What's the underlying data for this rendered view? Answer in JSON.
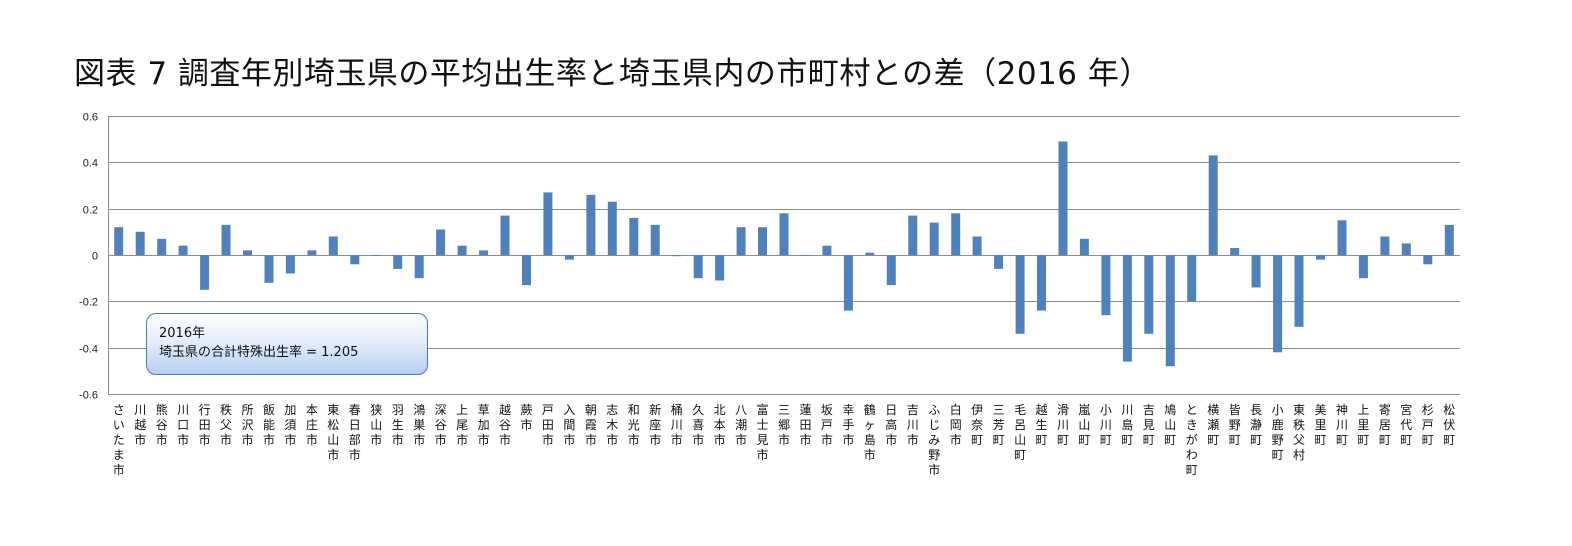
{
  "title": "図表 7 調査年別埼玉県の平均出生率と埼玉県内の市町村との差（2016 年）",
  "note": {
    "line1": "2016年",
    "line2": "埼玉県の合計特殊出生率 = 1.205"
  },
  "colors": {
    "bar": "#4f81bd",
    "grid": "#8c8c8c",
    "axis": "#8c8c8c"
  },
  "chart_data": {
    "type": "bar",
    "title": "図表 7 調査年別埼玉県の平均出生率と埼玉県内の市町村との差（2016 年）",
    "xlabel": "",
    "ylabel": "",
    "ylim": [
      -0.6,
      0.6
    ],
    "yticks": [
      "0.6",
      "0.4",
      "0.2",
      "0",
      "-0.2",
      "-0.4",
      "-0.6"
    ],
    "grid": true,
    "categories": [
      "さいたま市",
      "川越市",
      "熊谷市",
      "川口市",
      "行田市",
      "秩父市",
      "所沢市",
      "飯能市",
      "加須市",
      "本庄市",
      "東松山市",
      "春日部市",
      "狭山市",
      "羽生市",
      "鴻巣市",
      "深谷市",
      "上尾市",
      "草加市",
      "越谷市",
      "蕨市",
      "戸田市",
      "入間市",
      "朝霞市",
      "志木市",
      "和光市",
      "新座市",
      "桶川市",
      "久喜市",
      "北本市",
      "八潮市",
      "富士見市",
      "三郷市",
      "蓮田市",
      "坂戸市",
      "幸手市",
      "鶴ヶ島市",
      "日高市",
      "吉川市",
      "ふじみ野市",
      "白岡市",
      "伊奈町",
      "三芳町",
      "毛呂山町",
      "越生町",
      "滑川町",
      "嵐山町",
      "小川町",
      "川島町",
      "吉見町",
      "鳩山町",
      "ときがわ町",
      "横瀬町",
      "皆野町",
      "長瀞町",
      "小鹿野町",
      "東秩父村",
      "美里町",
      "神川町",
      "上里町",
      "寄居町",
      "宮代町",
      "杉戸町",
      "松伏町"
    ],
    "values": [
      0.12,
      0.1,
      0.07,
      0.04,
      -0.15,
      0.13,
      0.02,
      -0.12,
      -0.08,
      0.02,
      0.08,
      -0.04,
      0.0,
      -0.06,
      -0.1,
      0.11,
      0.04,
      0.02,
      0.17,
      -0.13,
      0.27,
      -0.02,
      0.26,
      0.23,
      0.16,
      0.13,
      -0.005,
      -0.1,
      -0.11,
      0.12,
      0.12,
      0.18,
      0.0,
      0.04,
      -0.24,
      0.01,
      -0.13,
      0.17,
      0.14,
      0.18,
      0.08,
      -0.06,
      -0.34,
      -0.24,
      0.49,
      0.07,
      -0.26,
      -0.46,
      -0.34,
      -0.48,
      -0.2,
      0.43,
      0.03,
      -0.14,
      -0.42,
      -0.31,
      -0.02,
      0.15,
      -0.1,
      0.08,
      0.05,
      -0.04,
      0.13
    ]
  }
}
